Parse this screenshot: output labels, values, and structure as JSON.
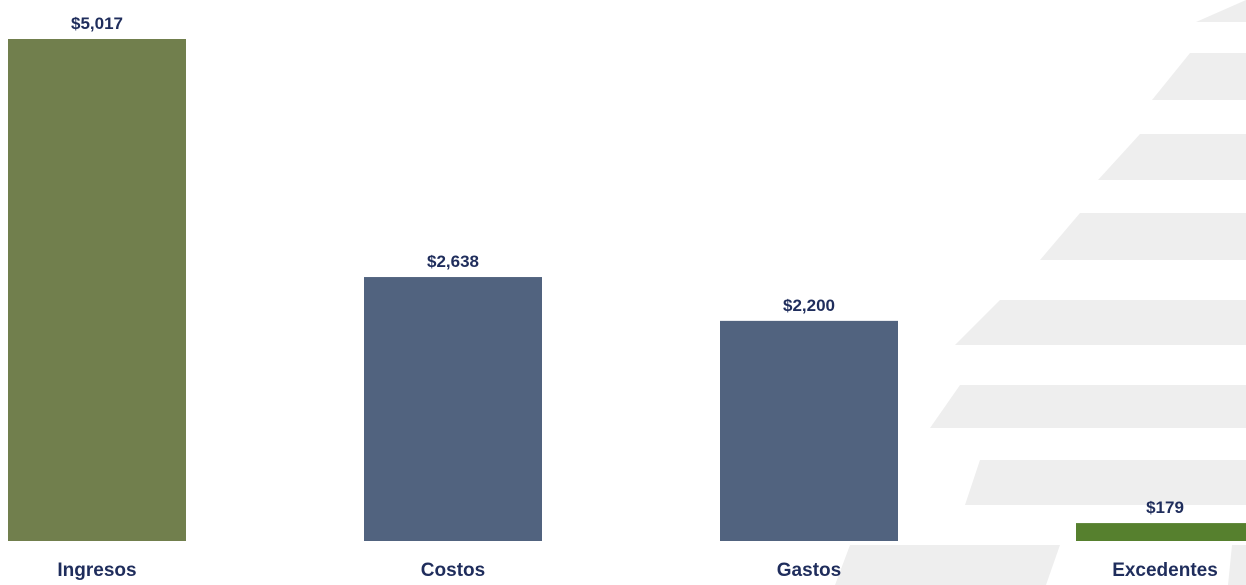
{
  "chart_data": {
    "type": "bar",
    "categories": [
      "Ingresos",
      "Costos",
      "Gastos",
      "Excedentes"
    ],
    "values": [
      5017,
      2638,
      2200,
      179
    ],
    "value_labels": [
      "$5,017",
      "$2,638",
      "$2,200",
      "$179"
    ],
    "bar_colors": [
      "#717F4D",
      "#51637F",
      "#51637F",
      "#56802E"
    ],
    "label_color": "#1F2D5C",
    "background_watermark_color": "#EEEEEE",
    "grid": false,
    "legend": "none",
    "ylim": [
      0,
      5017
    ]
  }
}
